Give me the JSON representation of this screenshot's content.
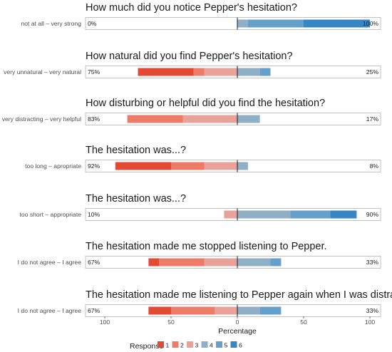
{
  "chart_data": {
    "type": "bar",
    "subtype": "diverging-stacked-likert",
    "xlabel": "Percentage",
    "x_ticks": [
      "100",
      "50",
      "0",
      "50",
      "100"
    ],
    "xlim": [
      -100,
      100
    ],
    "legend": {
      "title": "Response",
      "placement": "bottom",
      "levels": [
        "1",
        "2",
        "3",
        "4",
        "5",
        "6"
      ],
      "colors": [
        "#e34a33",
        "#ee7b68",
        "#e8a29a",
        "#8fafc6",
        "#64a0ca",
        "#3785c2"
      ]
    },
    "panels": [
      {
        "title": "How much did you notice Pepper's hesitation?",
        "item_label": "not at all – very strong",
        "left_pct": "0%",
        "right_pct": "100%",
        "values": [
          0,
          0,
          0,
          8,
          42,
          50
        ]
      },
      {
        "title": "How natural did you find Pepper's hesitation?",
        "item_label": "very unnatural – very natural",
        "left_pct": "75%",
        "right_pct": "25%",
        "values": [
          42,
          8,
          25,
          17,
          8,
          0
        ]
      },
      {
        "title": "How disturbing or helpful did you find the hesitation?",
        "item_label": "very distracting – very helpful",
        "left_pct": "83%",
        "right_pct": "17%",
        "values": [
          0,
          42,
          41,
          17,
          0,
          0
        ]
      },
      {
        "title": "The hesitation was...?",
        "item_label": "too long – apropriate",
        "left_pct": "92%",
        "right_pct": "8%",
        "values": [
          42,
          25,
          25,
          8,
          0,
          0
        ]
      },
      {
        "title": "The hesitation was...?",
        "item_label": "too short – appropriate",
        "left_pct": "10%",
        "right_pct": "90%",
        "values": [
          0,
          0,
          10,
          40,
          30,
          20
        ]
      },
      {
        "title": "The hesitation made me stopped listening to Pepper.",
        "item_label": "I do not agree – I agree",
        "left_pct": "67%",
        "right_pct": "33%",
        "values": [
          8,
          34,
          25,
          25,
          8,
          0
        ]
      },
      {
        "title": "The hesitation made me listening to Pepper again when I was distracted.",
        "item_label": "I do not agree – I agree",
        "left_pct": "67%",
        "right_pct": "33%",
        "values": [
          17,
          33,
          17,
          17,
          16,
          0
        ]
      }
    ]
  }
}
